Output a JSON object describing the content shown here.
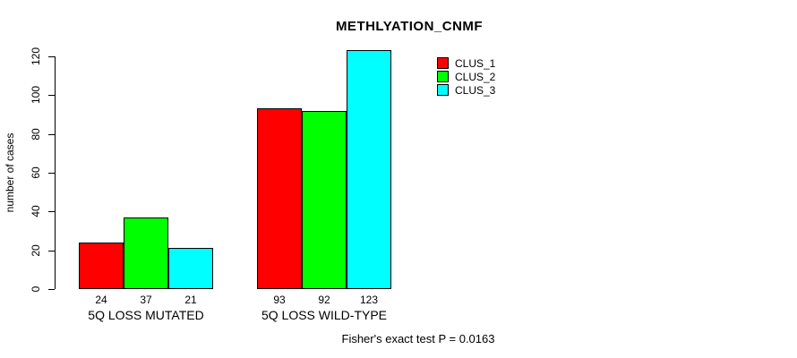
{
  "chart_data": {
    "type": "bar",
    "title": "METHLYATION_CNMF",
    "xlabel": "",
    "ylabel": "number of cases",
    "ylim": [
      0,
      120
    ],
    "yticks": [
      0,
      20,
      40,
      60,
      80,
      100,
      120
    ],
    "grid": "off",
    "legend_position": "top-right",
    "categories": [
      "5Q LOSS MUTATED",
      "5Q LOSS WILD-TYPE"
    ],
    "series": [
      {
        "name": "CLUS_1",
        "color": "#ff0000",
        "values": [
          24,
          93
        ]
      },
      {
        "name": "CLUS_2",
        "color": "#00ff00",
        "values": [
          37,
          92
        ]
      },
      {
        "name": "CLUS_3",
        "color": "#00ffff",
        "values": [
          21,
          123
        ]
      }
    ],
    "bar_value_labels": [
      [
        "24",
        "37",
        "21"
      ],
      [
        "93",
        "92",
        "123"
      ]
    ],
    "annotation": "Fisher's exact test P = 0.0163"
  },
  "colors": {
    "background": "#ffffff",
    "axis": "#000000",
    "bar_border": "#000000",
    "text": "#000000"
  }
}
